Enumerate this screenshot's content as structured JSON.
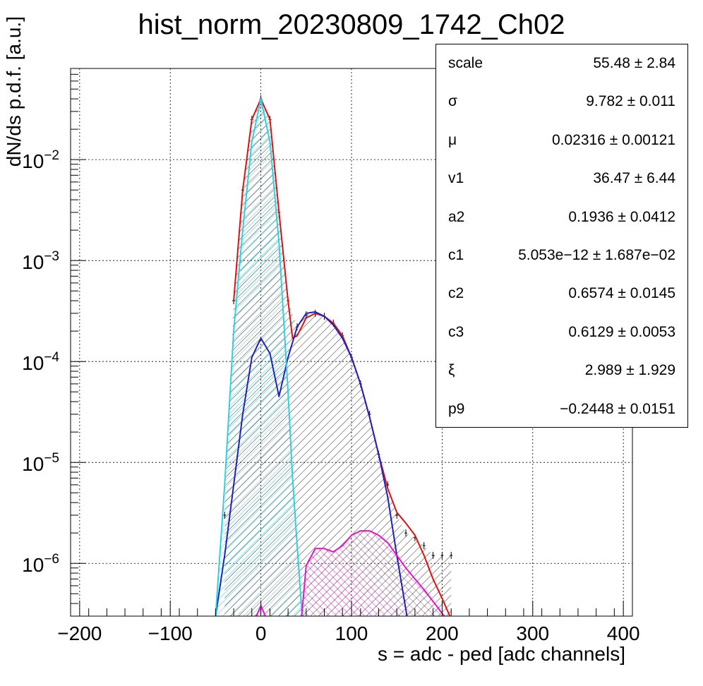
{
  "title": "hist_norm_20230809_1742_Ch02",
  "stats": [
    {
      "name": "scale",
      "value": "55.48 ± 2.84"
    },
    {
      "name": "σ",
      "value": "9.782 ± 0.011"
    },
    {
      "name": "μ",
      "value": "0.02316 ± 0.00121"
    },
    {
      "name": "v1",
      "value": "36.47 ± 6.44"
    },
    {
      "name": "a2",
      "value": "0.1936 ± 0.0412"
    },
    {
      "name": "c1",
      "value": "5.053e−12 ± 1.687e−02"
    },
    {
      "name": "c2",
      "value": "0.6574 ± 0.0145"
    },
    {
      "name": "c3",
      "value": "0.6129 ± 0.0053"
    },
    {
      "name": "ξ",
      "value": "2.989 ± 1.929"
    },
    {
      "name": "p9",
      "value": "−0.2448 ± 0.0151"
    }
  ],
  "chart_data": {
    "type": "line",
    "title": "hist_norm_20230809_1742_Ch02",
    "xlabel": "s = adc - ped [adc channels]",
    "ylabel": "dN/ds p.d.f. [a.u.]",
    "xlim": [
      -210,
      410
    ],
    "ylim": [
      3e-07,
      0.08
    ],
    "yscale": "log",
    "grid": true,
    "x_ticks": [
      "−200",
      "−100",
      "0",
      "100",
      "200",
      "300",
      "400"
    ],
    "y_ticks": [
      "10−2",
      "10−3",
      "10−4",
      "10−5",
      "10−6"
    ],
    "series": [
      {
        "color": "#e01010",
        "width": 2,
        "x": [
          -30,
          -20,
          -10,
          0,
          10,
          20,
          30,
          35,
          40,
          50,
          60,
          70,
          80,
          90,
          100,
          110,
          120,
          130,
          140,
          150,
          160,
          170,
          180,
          190,
          200,
          210
        ],
        "y": [
          0.0004,
          0.005,
          0.025,
          0.04,
          0.025,
          0.003,
          0.0004,
          0.00017,
          0.00018,
          0.00027,
          0.0003,
          0.00028,
          0.00024,
          0.00018,
          0.00011,
          6e-05,
          2.8e-05,
          1.2e-05,
          5.5e-06,
          3.2e-06,
          2.5e-06,
          1.9e-06,
          1.2e-06,
          7e-07,
          4.5e-07,
          2.8e-07
        ]
      },
      {
        "color": "#2020c0",
        "width": 2,
        "x": [
          -50,
          -40,
          -30,
          -20,
          -10,
          0,
          10,
          20,
          30,
          40,
          50,
          60,
          70,
          80,
          90,
          100,
          110,
          120,
          130,
          140,
          150,
          160,
          170
        ],
        "y": [
          3e-07,
          1.2e-06,
          6e-06,
          3e-05,
          0.00011,
          0.00017,
          0.00012,
          4.5e-05,
          0.00011,
          0.00022,
          0.0003,
          0.00031,
          0.00028,
          0.00023,
          0.00017,
          0.00011,
          6e-05,
          2.8e-05,
          1.2e-05,
          4.5e-06,
          1.2e-06,
          3.5e-07,
          1e-07
        ]
      },
      {
        "color": "#30d0e0",
        "width": 2,
        "fill": "hatch-cyan",
        "x": [
          -60,
          -50,
          -40,
          -30,
          -20,
          -10,
          0,
          10,
          20,
          30,
          35,
          40,
          45,
          50
        ],
        "y": [
          1e-07,
          3e-07,
          6e-06,
          0.0002,
          0.002,
          0.015,
          0.04,
          0.015,
          0.0015,
          5e-05,
          7e-06,
          1.5e-06,
          3.5e-07,
          1e-07
        ]
      },
      {
        "color": "#ee10cc",
        "width": 2,
        "fill": "hatch-magenta",
        "x": [
          45,
          50,
          60,
          70,
          80,
          90,
          100,
          110,
          120,
          130,
          140,
          150,
          160,
          170,
          180,
          190,
          200,
          210
        ],
        "y": [
          3e-07,
          9.5e-07,
          1.4e-06,
          1.4e-06,
          1.3e-06,
          1.5e-06,
          1.9e-06,
          2.1e-06,
          2.1e-06,
          1.9e-06,
          1.6e-06,
          1.2e-06,
          9e-07,
          7e-07,
          5.5e-07,
          4.2e-07,
          3.2e-07,
          2.5e-07
        ]
      },
      {
        "color": "#ee10cc",
        "width": 2,
        "x": [
          -10,
          -5,
          0,
          5,
          10
        ],
        "y": [
          2e-07,
          3e-07,
          3.8e-07,
          3e-07,
          2e-07
        ]
      }
    ],
    "histogram": {
      "color": "#000000",
      "x": [
        -40,
        -30,
        -20,
        -10,
        0,
        10,
        20,
        30,
        40,
        50,
        60,
        70,
        80,
        90,
        100,
        110,
        120,
        130,
        140,
        150,
        160,
        170,
        180,
        190,
        200,
        210
      ],
      "y": [
        3e-06,
        0.0004,
        0.005,
        0.025,
        0.04,
        0.025,
        0.003,
        0.0004,
        0.00022,
        0.00029,
        0.0003,
        0.00028,
        0.00024,
        0.00018,
        0.00011,
        6e-05,
        3e-05,
        1.2e-05,
        6e-06,
        3e-06,
        2e-06,
        1.8e-06,
        1.5e-06,
        1.2e-06,
        1.2e-06,
        1.2e-06
      ]
    }
  }
}
